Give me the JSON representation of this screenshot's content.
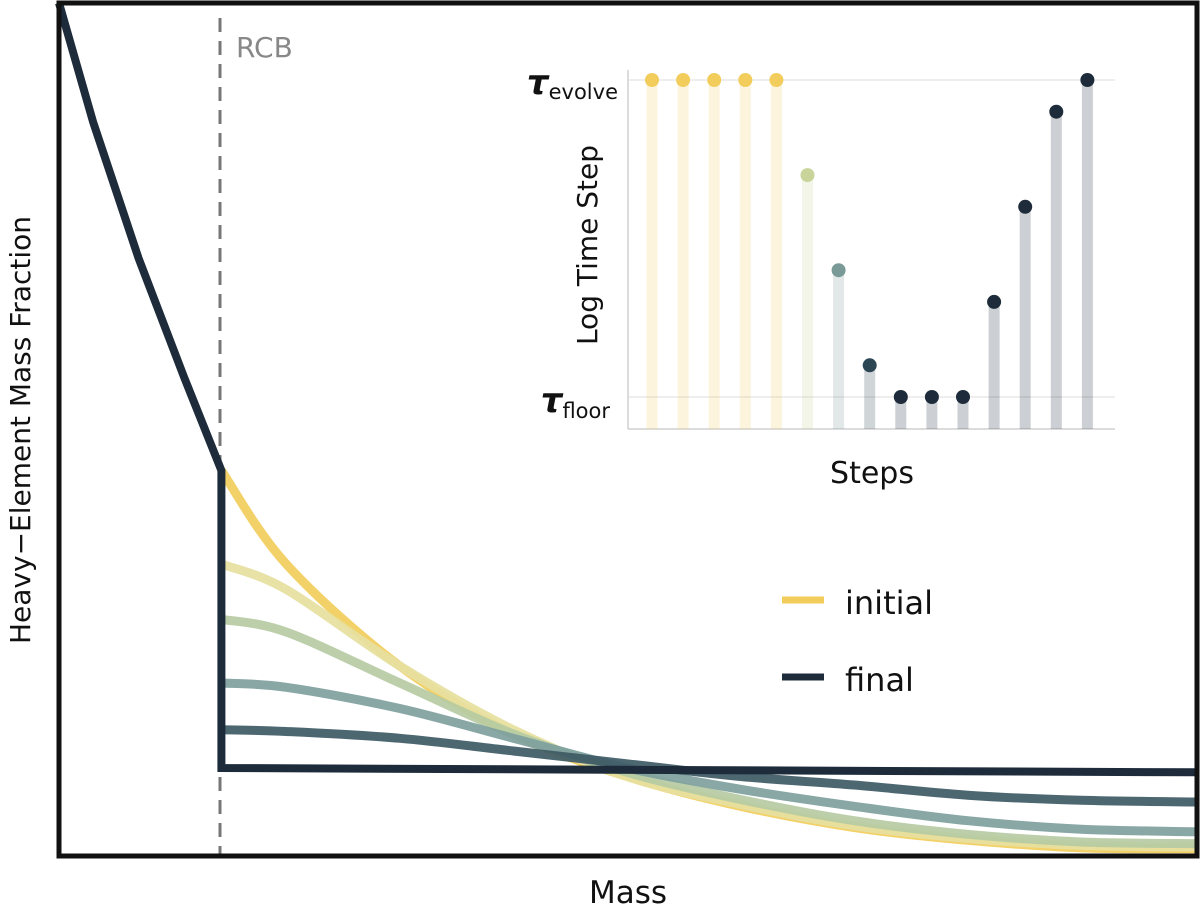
{
  "chart_data": [
    {
      "type": "line",
      "title": "",
      "xlabel": "Mass",
      "ylabel": "Heavy−Element Mass Fraction",
      "annotations": [
        {
          "text": "RCB",
          "kind": "vertical-dashed-line"
        }
      ],
      "legend": {
        "placement": "right",
        "entries": [
          {
            "label": "initial",
            "color": "#f2cd5c"
          },
          {
            "label": "final",
            "color": "#1d2b3a"
          }
        ]
      },
      "xlim": [
        0,
        1
      ],
      "ylim": [
        0,
        1
      ],
      "rcb_x": 0.143,
      "series": [
        {
          "color": "#1d2b3a",
          "points": [
            [
              0.0,
              1.0
            ],
            [
              0.03,
              0.86
            ],
            [
              0.07,
              0.7
            ],
            [
              0.11,
              0.56
            ],
            [
              0.143,
              0.45
            ],
            [
              0.143,
              0.1
            ],
            [
              1.0,
              0.095
            ]
          ]
        },
        {
          "color": "#f2cd5c",
          "points": [
            [
              0.143,
              0.45
            ],
            [
              0.2,
              0.34
            ],
            [
              0.3,
              0.22
            ],
            [
              0.4,
              0.14
            ],
            [
              0.5,
              0.09
            ],
            [
              0.6,
              0.055
            ],
            [
              0.7,
              0.03
            ],
            [
              0.8,
              0.015
            ],
            [
              0.9,
              0.006
            ],
            [
              1.0,
              0.005
            ]
          ]
        },
        {
          "color": "#e6dfa0",
          "points": [
            [
              0.143,
              0.34
            ],
            [
              0.2,
              0.31
            ],
            [
              0.3,
              0.22
            ],
            [
              0.4,
              0.145
            ],
            [
              0.5,
              0.09
            ],
            [
              0.6,
              0.057
            ],
            [
              0.7,
              0.032
            ],
            [
              0.8,
              0.017
            ],
            [
              0.9,
              0.009
            ],
            [
              1.0,
              0.007
            ]
          ]
        },
        {
          "color": "#b6cba3",
          "points": [
            [
              0.143,
              0.275
            ],
            [
              0.2,
              0.26
            ],
            [
              0.3,
              0.2
            ],
            [
              0.4,
              0.14
            ],
            [
              0.5,
              0.095
            ],
            [
              0.6,
              0.063
            ],
            [
              0.7,
              0.038
            ],
            [
              0.8,
              0.022
            ],
            [
              0.9,
              0.013
            ],
            [
              1.0,
              0.011
            ]
          ]
        },
        {
          "color": "#7e9f9d",
          "points": [
            [
              0.143,
              0.2
            ],
            [
              0.2,
              0.195
            ],
            [
              0.3,
              0.17
            ],
            [
              0.4,
              0.135
            ],
            [
              0.5,
              0.1
            ],
            [
              0.6,
              0.075
            ],
            [
              0.7,
              0.055
            ],
            [
              0.8,
              0.038
            ],
            [
              0.9,
              0.028
            ],
            [
              1.0,
              0.025
            ]
          ]
        },
        {
          "color": "#3e5a65",
          "points": [
            [
              0.143,
              0.145
            ],
            [
              0.2,
              0.143
            ],
            [
              0.3,
              0.135
            ],
            [
              0.4,
              0.12
            ],
            [
              0.5,
              0.105
            ],
            [
              0.6,
              0.09
            ],
            [
              0.7,
              0.08
            ],
            [
              0.8,
              0.068
            ],
            [
              0.9,
              0.062
            ],
            [
              1.0,
              0.06
            ]
          ]
        }
      ]
    },
    {
      "type": "bar",
      "xlabel": "Steps",
      "ylabel": "Log Time Step",
      "ylim": [
        0,
        1
      ],
      "grid": true,
      "y_tick_labels": [
        {
          "symbol": "τ",
          "subscript": "floor",
          "value": 0.0
        },
        {
          "symbol": "τ",
          "subscript": "evolve",
          "value": 1.0
        }
      ],
      "steps": [
        {
          "value": 1.0,
          "color": "#f2cd5c"
        },
        {
          "value": 1.0,
          "color": "#f2cd5c"
        },
        {
          "value": 1.0,
          "color": "#f2cd5c"
        },
        {
          "value": 1.0,
          "color": "#f2cd5c"
        },
        {
          "value": 1.0,
          "color": "#f2cd5c"
        },
        {
          "value": 0.7,
          "color": "#c8d49a"
        },
        {
          "value": 0.4,
          "color": "#7a9a97"
        },
        {
          "value": 0.1,
          "color": "#2d4653"
        },
        {
          "value": 0.0,
          "color": "#1d2b3a"
        },
        {
          "value": 0.0,
          "color": "#1d2b3a"
        },
        {
          "value": 0.0,
          "color": "#1d2b3a"
        },
        {
          "value": 0.3,
          "color": "#1d2b3a"
        },
        {
          "value": 0.6,
          "color": "#1d2b3a"
        },
        {
          "value": 0.9,
          "color": "#1d2b3a"
        },
        {
          "value": 1.0,
          "color": "#1d2b3a"
        }
      ]
    }
  ]
}
